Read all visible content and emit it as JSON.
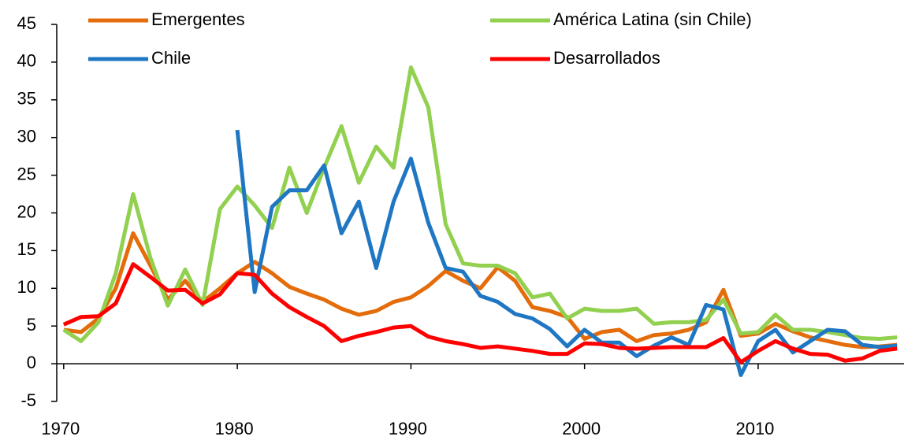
{
  "chart_data": {
    "type": "line",
    "x": [
      1970,
      1971,
      1972,
      1973,
      1974,
      1975,
      1976,
      1977,
      1978,
      1979,
      1980,
      1981,
      1982,
      1983,
      1984,
      1985,
      1986,
      1987,
      1988,
      1989,
      1990,
      1991,
      1992,
      1993,
      1994,
      1995,
      1996,
      1997,
      1998,
      1999,
      2000,
      2001,
      2002,
      2003,
      2004,
      2005,
      2006,
      2007,
      2008,
      2009,
      2010,
      2011,
      2012,
      2013,
      2014,
      2015,
      2016,
      2017,
      2018
    ],
    "series": [
      {
        "name": "Emergentes",
        "color": "#e46c0a",
        "values": [
          4.5,
          4.2,
          6,
          10,
          17.3,
          13,
          8.5,
          11,
          8.2,
          10,
          12,
          13.5,
          12,
          10.2,
          9.3,
          8.5,
          7.3,
          6.5,
          7,
          8.2,
          8.8,
          10.3,
          12.3,
          11,
          10,
          12.8,
          11,
          7.5,
          7,
          6.2,
          3.3,
          4.2,
          4.5,
          3,
          3.8,
          4,
          4.5,
          5.5,
          9.8,
          3.7,
          4,
          5.3,
          4.3,
          3.5,
          3,
          2.5,
          2.2,
          2.3,
          2.5
        ]
      },
      {
        "name": "América Latina (sin Chile)",
        "color": "#92d050",
        "values": [
          4.5,
          3,
          5.5,
          12,
          22.5,
          14,
          7.7,
          12.5,
          7.8,
          20.5,
          23.5,
          21,
          18,
          26,
          20,
          26,
          31.5,
          24,
          28.8,
          26,
          39.3,
          34,
          18.5,
          13.3,
          13,
          13,
          12,
          8.8,
          9.3,
          6,
          7.3,
          7,
          7,
          7.3,
          5.3,
          5.5,
          5.5,
          5.8,
          8.5,
          4,
          4.2,
          6.5,
          4.5,
          4.5,
          4.2,
          3.8,
          3.4,
          3.3,
          3.5
        ]
      },
      {
        "name": "Chile",
        "color": "#1f77c4",
        "values": [
          null,
          null,
          null,
          null,
          null,
          null,
          null,
          null,
          null,
          null,
          31,
          9.5,
          20.8,
          23,
          23,
          26.3,
          17.3,
          21.5,
          12.7,
          21.5,
          27.2,
          18.7,
          12.7,
          12.2,
          9,
          8.2,
          6.6,
          6,
          4.6,
          2.3,
          4.5,
          2.8,
          2.8,
          1,
          2.4,
          3.5,
          2.5,
          7.8,
          7.2,
          -1.5,
          3,
          4.5,
          1.5,
          3,
          4.5,
          4.3,
          2.5,
          2.2,
          2.4
        ]
      },
      {
        "name": "Desarrollados",
        "color": "#ff0000",
        "values": [
          5.2,
          6.2,
          6.3,
          8,
          13.2,
          11.5,
          9.7,
          9.8,
          8,
          9.2,
          12,
          11.8,
          9.3,
          7.5,
          6.2,
          5,
          3,
          3.7,
          4.2,
          4.8,
          5,
          3.6,
          3,
          2.6,
          2.1,
          2.3,
          2,
          1.7,
          1.3,
          1.3,
          2.7,
          2.6,
          2.1,
          2,
          2.1,
          2.2,
          2.2,
          2.2,
          3.4,
          0.2,
          1.7,
          3,
          2,
          1.3,
          1.2,
          0.4,
          0.7,
          1.7,
          2
        ]
      }
    ],
    "xlim": [
      1969.6,
      2018.4
    ],
    "xticks": [
      1970,
      1980,
      1990,
      2000,
      2010
    ],
    "ylim": [
      -5,
      45
    ],
    "yticks": [
      -5,
      0,
      5,
      10,
      15,
      20,
      25,
      30,
      35,
      40,
      45
    ],
    "grid": false,
    "legend": "top"
  }
}
